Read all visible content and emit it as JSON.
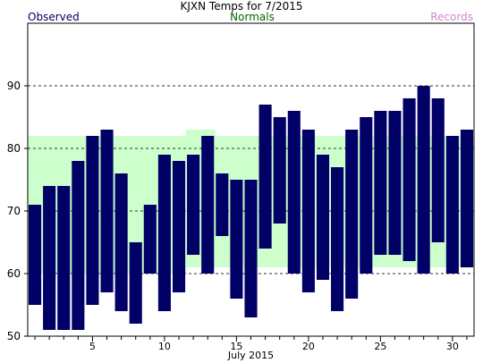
{
  "chart_data": {
    "type": "bar",
    "title": "KJXN Temps for 7/2015",
    "legend": {
      "observed": "Observed",
      "normals": "Normals",
      "records": "Records"
    },
    "xlabel": "July 2015",
    "ylim": [
      50,
      100
    ],
    "yticks": [
      50,
      60,
      70,
      80,
      90
    ],
    "xticks": [
      5,
      10,
      15,
      20,
      25,
      30
    ],
    "grid": "dashed horizontal lines at 60, 70, 80, 90",
    "days": [
      1,
      2,
      3,
      4,
      5,
      6,
      7,
      8,
      9,
      10,
      11,
      12,
      13,
      14,
      15,
      16,
      17,
      18,
      19,
      20,
      21,
      22,
      23,
      24,
      25,
      26,
      27,
      28,
      29,
      30,
      31
    ],
    "series": [
      {
        "name": "Observed",
        "role": "high",
        "values": [
          71,
          74,
          74,
          78,
          82,
          83,
          76,
          65,
          71,
          79,
          78,
          79,
          82,
          76,
          75,
          75,
          87,
          85,
          86,
          83,
          79,
          77,
          83,
          85,
          86,
          86,
          88,
          90,
          88,
          82,
          83
        ]
      },
      {
        "name": "Observed",
        "role": "low",
        "values": [
          55,
          51,
          51,
          51,
          55,
          57,
          54,
          52,
          60,
          54,
          57,
          63,
          60,
          66,
          56,
          53,
          64,
          68,
          60,
          57,
          59,
          54,
          56,
          60,
          63,
          63,
          62,
          60,
          65,
          60,
          61
        ]
      },
      {
        "name": "Normals",
        "role": "high",
        "values": [
          82,
          82,
          82,
          82,
          82,
          82,
          82,
          82,
          82,
          82,
          82,
          83,
          83,
          82,
          82,
          82,
          82,
          82,
          82,
          82,
          82,
          82,
          82,
          82,
          82,
          82,
          82,
          82,
          82,
          82,
          82
        ]
      },
      {
        "name": "Normals",
        "role": "low",
        "values": [
          60,
          60,
          60,
          60,
          60,
          60,
          60,
          60,
          60,
          60,
          60,
          61,
          61,
          61,
          61,
          61,
          61,
          61,
          61,
          61,
          61,
          61,
          61,
          61,
          61,
          61,
          61,
          61,
          61,
          61,
          61
        ]
      }
    ],
    "colors": {
      "observed": "#000066",
      "normals": "#ccffcc",
      "normals_label": "#006600",
      "records_label": "#cc88cc",
      "observed_label": "#000066",
      "grid": "#333333",
      "axis": "#000000"
    }
  }
}
